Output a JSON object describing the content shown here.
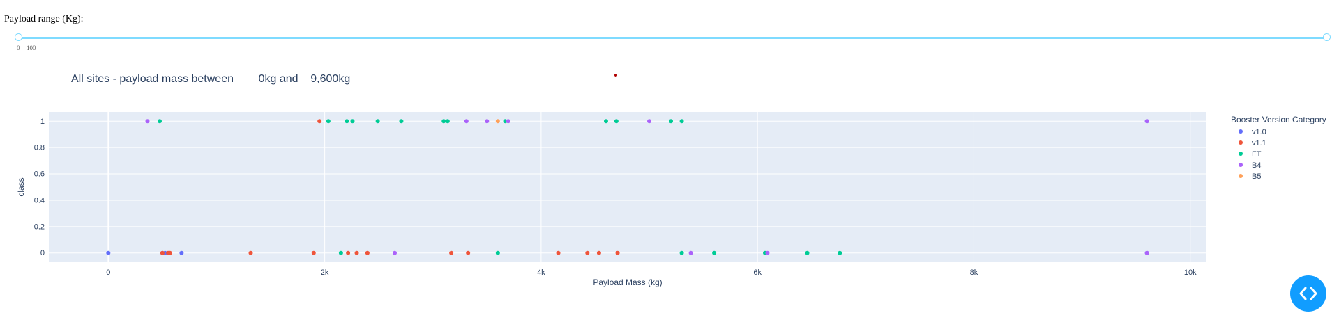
{
  "controls": {
    "range_label": "Payload range (Kg):",
    "slider_ticks": [
      "0",
      "100"
    ]
  },
  "chart_title": "All sites - payload mass between        0kg and    9,600kg",
  "colors": {
    "plot_bg": "#e5ecf6",
    "grid": "#ffffff",
    "slider": "#7fdbff",
    "v1.0": "#636efa",
    "v1.1": "#ef553b",
    "FT": "#00cc96",
    "B4": "#ab63fa",
    "B5": "#ffa15a",
    "code_button": "#119dff"
  },
  "chart_data": {
    "type": "scatter",
    "title": "All sites - payload mass between        0kg and    9,600kg",
    "xlabel": "Payload Mass (kg)",
    "ylabel": "class",
    "xlim": [
      -550,
      10150
    ],
    "ylim": [
      -0.07,
      1.07
    ],
    "xticks": [
      0,
      2000,
      4000,
      6000,
      8000,
      10000
    ],
    "xtick_labels": [
      "0",
      "2k",
      "4k",
      "6k",
      "8k",
      "10k"
    ],
    "yticks": [
      0,
      0.2,
      0.4,
      0.6,
      0.8,
      1
    ],
    "ytick_labels": [
      "0",
      "0.2",
      "0.4",
      "0.6",
      "0.8",
      "1"
    ],
    "grid": true,
    "legend_title": "Booster Version Category",
    "legend_position": "right",
    "series": [
      {
        "name": "v1.0",
        "points": [
          [
            0,
            0
          ],
          [
            500,
            0
          ],
          [
            525,
            0
          ],
          [
            677,
            0
          ],
          [
            9600,
            0
          ],
          [
            9600,
            1
          ]
        ]
      },
      {
        "name": "v1.1",
        "points": [
          [
            500,
            0
          ],
          [
            553,
            0
          ],
          [
            570,
            0
          ],
          [
            1316,
            0
          ],
          [
            1898,
            0
          ],
          [
            1952,
            1
          ],
          [
            2216,
            0
          ],
          [
            2296,
            0
          ],
          [
            2395,
            0
          ],
          [
            3170,
            0
          ],
          [
            3325,
            0
          ],
          [
            4159,
            0
          ],
          [
            4428,
            0
          ],
          [
            4535,
            0
          ],
          [
            4707,
            0
          ]
        ]
      },
      {
        "name": "FT",
        "points": [
          [
            475,
            1
          ],
          [
            2034,
            1
          ],
          [
            2150,
            0
          ],
          [
            2205,
            1
          ],
          [
            2257,
            1
          ],
          [
            2490,
            1
          ],
          [
            2708,
            1
          ],
          [
            3100,
            1
          ],
          [
            3136,
            1
          ],
          [
            3600,
            0
          ],
          [
            3669,
            1
          ],
          [
            4600,
            1
          ],
          [
            4696,
            1
          ],
          [
            5200,
            1
          ],
          [
            5300,
            0
          ],
          [
            5300,
            1
          ],
          [
            5600,
            0
          ],
          [
            6070,
            0
          ],
          [
            6460,
            0
          ],
          [
            6761,
            0
          ]
        ]
      },
      {
        "name": "B4",
        "points": [
          [
            362,
            1
          ],
          [
            2647,
            0
          ],
          [
            3310,
            1
          ],
          [
            3500,
            1
          ],
          [
            3696,
            1
          ],
          [
            5000,
            1
          ],
          [
            5384,
            0
          ],
          [
            6092,
            0
          ],
          [
            9600,
            0
          ],
          [
            9600,
            1
          ]
        ]
      },
      {
        "name": "B5",
        "points": [
          [
            3600,
            1
          ]
        ]
      }
    ]
  }
}
